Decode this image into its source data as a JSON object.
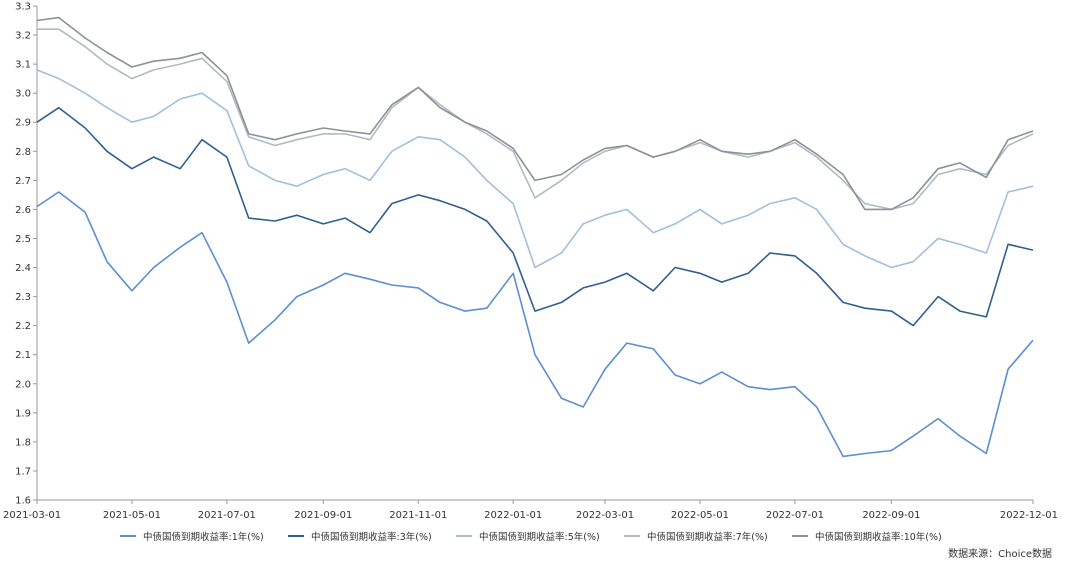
{
  "chart_data": {
    "type": "line",
    "title": "",
    "xlabel": "",
    "ylabel": "",
    "ylim": [
      1.6,
      3.3
    ],
    "yticks": [
      "1.6",
      "1.7",
      "1.8",
      "1.9",
      "2.0",
      "2.1",
      "2.2",
      "2.3",
      "2.4",
      "2.5",
      "2.6",
      "2.7",
      "2.8",
      "2.9",
      "3.0",
      "3.1",
      "3.2",
      "3.3"
    ],
    "xticks": [
      "2021-03-01",
      "2021-05-01",
      "2021-07-01",
      "2021-09-01",
      "2021-11-01",
      "2022-01-01",
      "2022-03-01",
      "2022-05-01",
      "2022-07-01",
      "2022-09-01",
      "2022-12-01"
    ],
    "grid": false,
    "legend_position": "bottom",
    "x": [
      "2021-03-01",
      "2021-03-15",
      "2021-04-01",
      "2021-04-15",
      "2021-05-01",
      "2021-05-15",
      "2021-06-01",
      "2021-06-15",
      "2021-07-01",
      "2021-07-15",
      "2021-08-01",
      "2021-08-15",
      "2021-09-01",
      "2021-09-15",
      "2021-10-01",
      "2021-10-15",
      "2021-11-01",
      "2021-11-15",
      "2021-12-01",
      "2021-12-15",
      "2022-01-01",
      "2022-01-15",
      "2022-02-01",
      "2022-02-15",
      "2022-03-01",
      "2022-03-15",
      "2022-04-01",
      "2022-04-15",
      "2022-05-01",
      "2022-05-15",
      "2022-06-01",
      "2022-06-15",
      "2022-07-01",
      "2022-07-15",
      "2022-08-01",
      "2022-08-15",
      "2022-09-01",
      "2022-09-15",
      "2022-10-01",
      "2022-10-15",
      "2022-11-01",
      "2022-11-15",
      "2022-12-01"
    ],
    "series": [
      {
        "name": "中债国债到期收益率:1年(%)",
        "color": "#5b8fd0",
        "values": [
          2.61,
          2.66,
          2.59,
          2.42,
          2.32,
          2.4,
          2.47,
          2.52,
          2.35,
          2.14,
          2.22,
          2.3,
          2.34,
          2.38,
          2.36,
          2.34,
          2.33,
          2.28,
          2.25,
          2.26,
          2.38,
          2.1,
          1.95,
          1.92,
          2.05,
          2.14,
          2.12,
          2.03,
          2.0,
          2.04,
          1.99,
          1.98,
          1.99,
          1.92,
          1.75,
          1.76,
          1.77,
          1.82,
          1.88,
          1.82,
          1.76,
          2.05,
          2.15
        ]
      },
      {
        "name": "中债国债到期收益率:3年(%)",
        "color": "#2f5f8f",
        "values": [
          2.9,
          2.95,
          2.88,
          2.8,
          2.74,
          2.78,
          2.74,
          2.84,
          2.78,
          2.57,
          2.56,
          2.58,
          2.55,
          2.57,
          2.52,
          2.62,
          2.65,
          2.63,
          2.6,
          2.56,
          2.45,
          2.25,
          2.28,
          2.33,
          2.35,
          2.38,
          2.32,
          2.4,
          2.38,
          2.35,
          2.38,
          2.45,
          2.44,
          2.38,
          2.28,
          2.26,
          2.25,
          2.2,
          2.3,
          2.25,
          2.23,
          2.48,
          2.46
        ]
      },
      {
        "name": "中债国债到期收益率:5年(%)",
        "color": "#9fc0df",
        "values": [
          3.08,
          3.05,
          3.0,
          2.95,
          2.9,
          2.92,
          2.98,
          3.0,
          2.94,
          2.75,
          2.7,
          2.68,
          2.72,
          2.74,
          2.7,
          2.8,
          2.85,
          2.84,
          2.78,
          2.7,
          2.62,
          2.4,
          2.45,
          2.55,
          2.58,
          2.6,
          2.52,
          2.55,
          2.6,
          2.55,
          2.58,
          2.62,
          2.64,
          2.6,
          2.48,
          2.44,
          2.4,
          2.42,
          2.5,
          2.48,
          2.45,
          2.66,
          2.68
        ]
      },
      {
        "name": "中债国债到期收益率:7年(%)",
        "color": "#b3b9c2",
        "values": [
          3.22,
          3.22,
          3.16,
          3.1,
          3.05,
          3.08,
          3.1,
          3.12,
          3.04,
          2.85,
          2.82,
          2.84,
          2.86,
          2.86,
          2.84,
          2.95,
          3.02,
          2.96,
          2.9,
          2.86,
          2.8,
          2.64,
          2.7,
          2.76,
          2.8,
          2.82,
          2.78,
          2.8,
          2.83,
          2.8,
          2.78,
          2.8,
          2.83,
          2.78,
          2.7,
          2.62,
          2.6,
          2.62,
          2.72,
          2.74,
          2.72,
          2.82,
          2.86
        ]
      },
      {
        "name": "中债国债到期收益率:10年(%)",
        "color": "#8c9199",
        "values": [
          3.25,
          3.26,
          3.19,
          3.14,
          3.09,
          3.11,
          3.12,
          3.14,
          3.06,
          2.86,
          2.84,
          2.86,
          2.88,
          2.87,
          2.86,
          2.96,
          3.02,
          2.95,
          2.9,
          2.87,
          2.81,
          2.7,
          2.72,
          2.77,
          2.81,
          2.82,
          2.78,
          2.8,
          2.84,
          2.8,
          2.79,
          2.8,
          2.84,
          2.79,
          2.72,
          2.6,
          2.6,
          2.64,
          2.74,
          2.76,
          2.71,
          2.84,
          2.87
        ]
      }
    ],
    "source": "数据来源：Choice数据"
  }
}
